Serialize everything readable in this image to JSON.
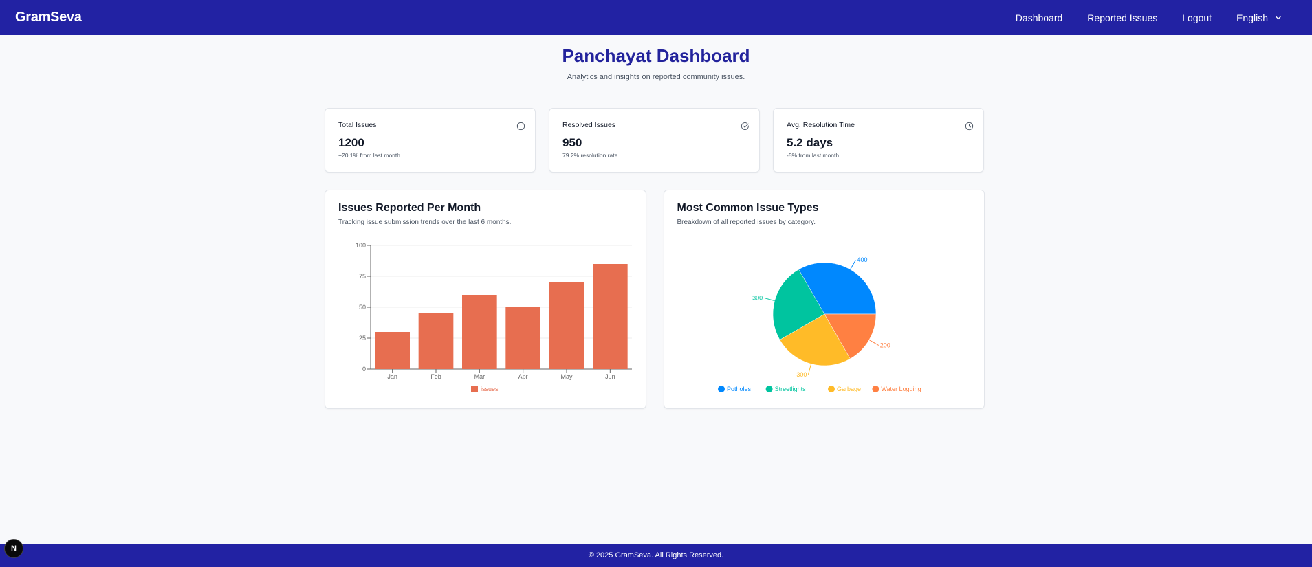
{
  "app": {
    "brand": "GramSeva"
  },
  "nav": {
    "dashboard": "Dashboard",
    "reported_issues": "Reported Issues",
    "logout": "Logout",
    "language": "English"
  },
  "page": {
    "title": "Panchayat Dashboard",
    "subtitle": "Analytics and insights on reported community issues."
  },
  "stats": [
    {
      "label": "Total Issues",
      "value": "1200",
      "note": "+20.1% from last month",
      "icon": "alert-circle-icon"
    },
    {
      "label": "Resolved Issues",
      "value": "950",
      "note": "79.2% resolution rate",
      "icon": "check-circle-icon"
    },
    {
      "label": "Avg. Resolution Time",
      "value": "5.2 days",
      "note": "-5% from last month",
      "icon": "clock-icon"
    }
  ],
  "bar_card": {
    "title": "Issues Reported Per Month",
    "subtitle": "Tracking issue submission trends over the last 6 months."
  },
  "pie_card": {
    "title": "Most Common Issue Types",
    "subtitle": "Breakdown of all reported issues by category."
  },
  "chart_data": [
    {
      "type": "bar",
      "categories": [
        "Jan",
        "Feb",
        "Mar",
        "Apr",
        "May",
        "Jun"
      ],
      "series": [
        {
          "name": "issues",
          "values": [
            30,
            45,
            60,
            50,
            70,
            85
          ]
        }
      ],
      "yticks": [
        0,
        25,
        50,
        75,
        100
      ],
      "ylim": [
        0,
        100
      ],
      "legend": "bottom",
      "grid": true,
      "color": "#e76e50"
    },
    {
      "type": "pie",
      "labels": [
        "Potholes",
        "Streetlights",
        "Garbage",
        "Water Logging"
      ],
      "values": [
        400,
        300,
        300,
        200
      ],
      "colors": [
        "#0088fe",
        "#00c49f",
        "#ffbb28",
        "#ff8042"
      ],
      "legend": "bottom"
    }
  ],
  "footer": {
    "text": "© 2025 GramSeva. All Rights Reserved."
  },
  "dev_badge": {
    "label": "N"
  }
}
